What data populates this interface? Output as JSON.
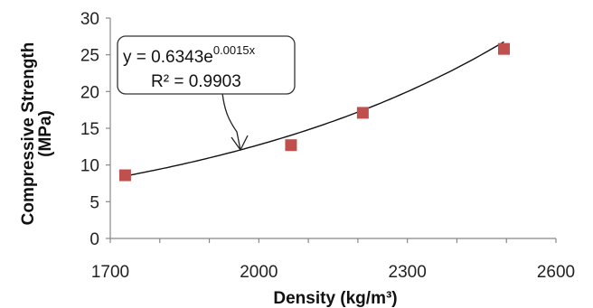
{
  "chart_data": {
    "type": "scatter",
    "xlabel": "Density (kg/m³)",
    "ylabel_line1": "Compressive Strength",
    "ylabel_line2": "(MPa)",
    "xlim": [
      1700,
      2600
    ],
    "ylim": [
      0,
      30
    ],
    "x_ticks": [
      "1700",
      "2000",
      "2300",
      "2600"
    ],
    "y_ticks": [
      "0",
      "5",
      "10",
      "15",
      "20",
      "25",
      "30"
    ],
    "grid": false,
    "series": [
      {
        "marker_color": "#C0504D",
        "points": [
          {
            "x": 1730,
            "y": 8.6
          },
          {
            "x": 2065,
            "y": 12.7
          },
          {
            "x": 2210,
            "y": 17.1
          },
          {
            "x": 2495,
            "y": 25.8
          }
        ]
      }
    ],
    "trendline": {
      "type": "exponential",
      "a": 0.6343,
      "b": 0.0015,
      "equation_base": "y = 0.6343e",
      "equation_exponent": "0.0015x",
      "r2_text": "R² = 0.9903"
    }
  }
}
